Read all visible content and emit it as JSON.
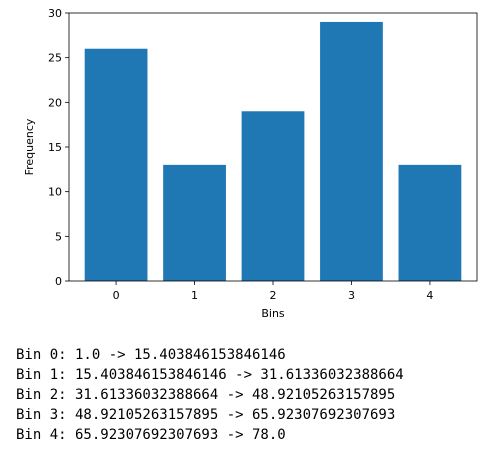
{
  "chart_data": {
    "type": "bar",
    "categories": [
      "0",
      "1",
      "2",
      "3",
      "4"
    ],
    "values": [
      26,
      13,
      19,
      29,
      13
    ],
    "title": "",
    "xlabel": "Bins",
    "ylabel": "Frequency",
    "ylim": [
      0,
      30
    ],
    "yticks": [
      0,
      5,
      10,
      15,
      20,
      25,
      30
    ],
    "bar_color": "#1f77b4",
    "grid": false,
    "legend": "none"
  },
  "output_lines": [
    "Bin 0: 1.0 -> 15.403846153846146",
    "Bin 1: 15.403846153846146 -> 31.61336032388664",
    "Bin 2: 31.61336032388664 -> 48.92105263157895",
    "Bin 3: 48.92105263157895 -> 65.92307692307693",
    "Bin 4: 65.92307692307693 -> 78.0"
  ]
}
